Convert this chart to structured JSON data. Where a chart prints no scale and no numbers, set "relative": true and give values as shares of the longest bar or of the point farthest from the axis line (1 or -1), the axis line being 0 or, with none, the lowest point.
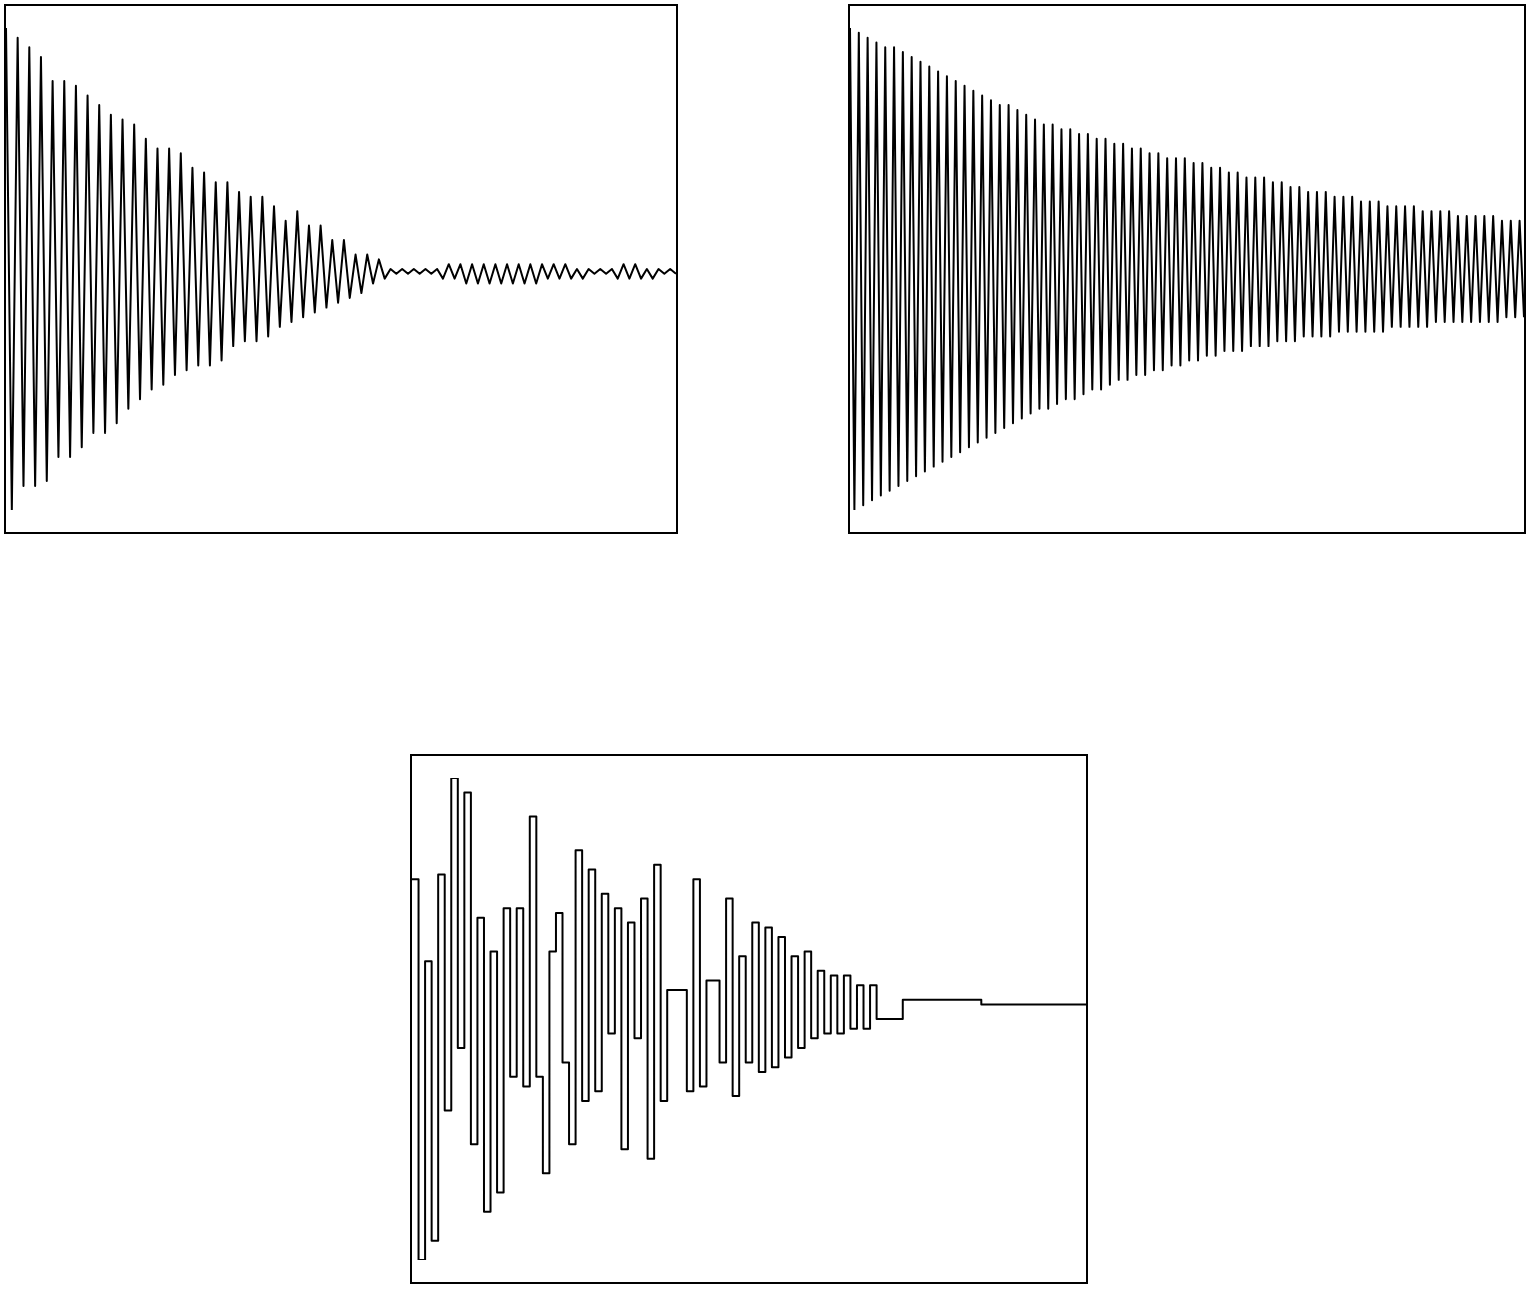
{
  "chart_data": [
    {
      "type": "line",
      "relative": true,
      "color": "#000000",
      "categories": [
        null,
        null,
        null,
        null,
        null,
        null,
        null,
        null,
        null,
        null,
        null,
        null,
        null,
        null,
        null,
        null,
        null,
        null,
        null,
        null,
        null,
        null,
        null,
        null,
        null,
        null,
        null,
        null,
        null,
        null,
        null,
        null,
        null,
        null,
        null,
        null,
        null,
        null,
        null,
        null,
        null,
        null,
        null,
        null,
        null,
        null,
        null,
        null,
        null,
        null,
        null,
        null,
        null,
        null,
        null,
        null,
        null,
        null,
        null,
        null,
        null,
        null,
        null,
        null,
        null,
        null,
        null,
        null,
        null,
        null,
        null,
        null,
        null,
        null,
        null,
        null,
        null,
        null,
        null,
        null,
        null,
        null,
        null,
        null,
        null,
        null,
        null,
        null,
        null,
        null,
        null,
        null,
        null,
        null,
        null,
        null,
        null,
        null,
        null,
        null,
        null,
        null,
        null,
        null,
        null,
        null,
        null,
        null,
        null,
        null,
        null,
        null,
        null,
        null,
        null,
        null
      ],
      "values": [
        1,
        0,
        0.98,
        0.05,
        0.96,
        0.05,
        0.94,
        0.06,
        0.89,
        0.11,
        0.89,
        0.11,
        0.88,
        0.13,
        0.86,
        0.16,
        0.84,
        0.16,
        0.82,
        0.18,
        0.81,
        0.21,
        0.8,
        0.23,
        0.77,
        0.25,
        0.75,
        0.26,
        0.75,
        0.28,
        0.74,
        0.29,
        0.71,
        0.3,
        0.7,
        0.3,
        0.68,
        0.31,
        0.68,
        0.34,
        0.66,
        0.35,
        0.65,
        0.35,
        0.65,
        0.36,
        0.63,
        0.38,
        0.6,
        0.39,
        0.62,
        0.4,
        0.59,
        0.41,
        0.59,
        0.42,
        0.56,
        0.43,
        0.56,
        0.44,
        0.53,
        0.45,
        0.53,
        0.47,
        0.52,
        0.48,
        0.5,
        0.49,
        0.5,
        0.49,
        0.5,
        0.49,
        0.5,
        0.49,
        0.5,
        0.48,
        0.51,
        0.48,
        0.51,
        0.47,
        0.51,
        0.47,
        0.51,
        0.47,
        0.51,
        0.47,
        0.51,
        0.47,
        0.51,
        0.47,
        0.51,
        0.47,
        0.51,
        0.48,
        0.51,
        0.48,
        0.51,
        0.48,
        0.5,
        0.48,
        0.5,
        0.49,
        0.5,
        0.49,
        0.5,
        0.48,
        0.51,
        0.48,
        0.51,
        0.48,
        0.5,
        0.48,
        0.5,
        0.49,
        0.5,
        0.49
      ]
    },
    {
      "type": "line",
      "relative": true,
      "color": "#000000",
      "categories": [
        null,
        null,
        null,
        null,
        null,
        null,
        null,
        null,
        null,
        null,
        null,
        null,
        null,
        null,
        null,
        null,
        null,
        null,
        null,
        null,
        null,
        null,
        null,
        null,
        null,
        null,
        null,
        null,
        null,
        null,
        null,
        null,
        null,
        null,
        null,
        null,
        null,
        null,
        null,
        null,
        null,
        null,
        null,
        null,
        null,
        null,
        null,
        null,
        null,
        null,
        null,
        null,
        null,
        null,
        null,
        null,
        null,
        null,
        null,
        null,
        null,
        null,
        null,
        null,
        null,
        null,
        null,
        null,
        null,
        null,
        null,
        null,
        null,
        null,
        null,
        null,
        null,
        null,
        null,
        null,
        null,
        null,
        null,
        null,
        null,
        null,
        null,
        null,
        null,
        null,
        null,
        null,
        null,
        null,
        null,
        null,
        null,
        null,
        null,
        null,
        null,
        null,
        null,
        null,
        null,
        null,
        null,
        null,
        null,
        null,
        null,
        null,
        null,
        null,
        null,
        null,
        null,
        null,
        null,
        null,
        null,
        null,
        null,
        null,
        null,
        null,
        null,
        null,
        null,
        null,
        null,
        null,
        null,
        null,
        null,
        null,
        null,
        null,
        null,
        null,
        null,
        null,
        null,
        null,
        null,
        null,
        null,
        null,
        null,
        null,
        null,
        null,
        null,
        null
      ],
      "values": [
        1,
        0,
        0.99,
        0.01,
        0.98,
        0.02,
        0.97,
        0.03,
        0.96,
        0.04,
        0.96,
        0.05,
        0.95,
        0.06,
        0.94,
        0.07,
        0.93,
        0.08,
        0.92,
        0.09,
        0.91,
        0.1,
        0.9,
        0.11,
        0.89,
        0.12,
        0.88,
        0.13,
        0.87,
        0.14,
        0.86,
        0.15,
        0.85,
        0.16,
        0.84,
        0.17,
        0.84,
        0.18,
        0.83,
        0.19,
        0.82,
        0.2,
        0.81,
        0.21,
        0.8,
        0.21,
        0.8,
        0.22,
        0.79,
        0.23,
        0.79,
        0.23,
        0.78,
        0.24,
        0.78,
        0.25,
        0.77,
        0.25,
        0.77,
        0.26,
        0.76,
        0.27,
        0.76,
        0.27,
        0.75,
        0.28,
        0.75,
        0.28,
        0.74,
        0.29,
        0.74,
        0.29,
        0.73,
        0.3,
        0.73,
        0.3,
        0.73,
        0.31,
        0.72,
        0.31,
        0.72,
        0.32,
        0.71,
        0.32,
        0.71,
        0.33,
        0.7,
        0.33,
        0.7,
        0.33,
        0.69,
        0.34,
        0.69,
        0.34,
        0.69,
        0.34,
        0.68,
        0.35,
        0.68,
        0.35,
        0.67,
        0.35,
        0.67,
        0.36,
        0.66,
        0.36,
        0.66,
        0.36,
        0.66,
        0.36,
        0.65,
        0.37,
        0.65,
        0.37,
        0.65,
        0.37,
        0.64,
        0.37,
        0.64,
        0.37,
        0.64,
        0.37,
        0.63,
        0.38,
        0.63,
        0.38,
        0.63,
        0.38,
        0.63,
        0.38,
        0.62,
        0.38,
        0.62,
        0.39,
        0.62,
        0.39,
        0.62,
        0.39,
        0.61,
        0.39,
        0.61,
        0.39,
        0.61,
        0.39,
        0.61,
        0.39,
        0.61,
        0.39,
        0.6,
        0.4,
        0.6,
        0.4,
        0.6,
        0.4
      ]
    },
    {
      "type": "step",
      "relative": true,
      "color": "#000000",
      "categories": [
        null,
        null,
        null,
        null,
        null,
        null,
        null,
        null,
        null,
        null,
        null,
        null,
        null,
        null,
        null,
        null,
        null,
        null,
        null,
        null,
        null,
        null,
        null,
        null,
        null,
        null,
        null,
        null,
        null,
        null,
        null,
        null,
        null,
        null,
        null,
        null,
        null,
        null,
        null,
        null,
        null,
        null,
        null,
        null,
        null,
        null,
        null,
        null,
        null,
        null,
        null,
        null,
        null,
        null,
        null,
        null,
        null,
        null,
        null,
        null,
        null,
        null,
        null,
        null,
        null,
        null,
        null,
        null,
        null,
        null,
        null,
        null,
        null,
        null,
        null,
        null,
        null,
        null,
        null,
        null,
        null,
        null,
        null,
        null,
        null,
        null,
        null,
        null,
        null,
        null,
        null,
        null,
        null,
        null,
        null,
        null,
        null,
        null,
        null,
        null,
        null,
        null,
        null,
        null
      ],
      "values": [
        0.79,
        0,
        0.62,
        0.04,
        0.8,
        0.31,
        1,
        0.44,
        0.97,
        0.24,
        0.71,
        0.1,
        0.64,
        0.14,
        0.73,
        0.38,
        0.73,
        0.36,
        0.92,
        0.38,
        0.18,
        0.64,
        0.72,
        0.41,
        0.24,
        0.85,
        0.33,
        0.81,
        0.35,
        0.76,
        0.47,
        0.73,
        0.23,
        0.7,
        0.46,
        0.75,
        0.21,
        0.82,
        0.33,
        0.56,
        0.56,
        0.56,
        0.35,
        0.79,
        0.36,
        0.58,
        0.58,
        0.41,
        0.75,
        0.34,
        0.63,
        0.41,
        0.7,
        0.39,
        0.69,
        0.4,
        0.67,
        0.42,
        0.63,
        0.44,
        0.64,
        0.46,
        0.6,
        0.47,
        0.59,
        0.47,
        0.59,
        0.48,
        0.57,
        0.48,
        0.57,
        0.5,
        0.5,
        0.5,
        0.5,
        0.54,
        0.54,
        0.54,
        0.54,
        0.54,
        0.54,
        0.54,
        0.54,
        0.54,
        0.54,
        0.54,
        0.54,
        0.53,
        0.53,
        0.53,
        0.53,
        0.53,
        0.53,
        0.53,
        0.53,
        0.53,
        0.53,
        0.53,
        0.53,
        0.53,
        0.53,
        0.53,
        0.53,
        0.53
      ]
    }
  ]
}
